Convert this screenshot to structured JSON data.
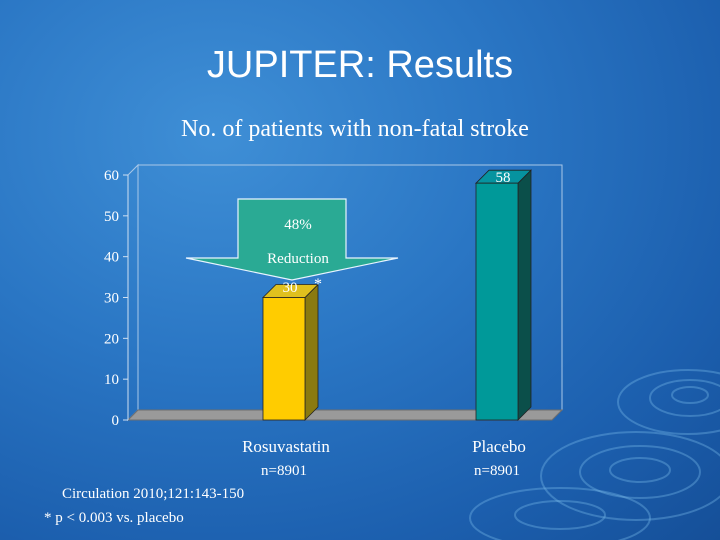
{
  "slide": {
    "title": "JUPITER: Results",
    "subtitle": "No. of patients with non-fatal stroke",
    "citation": "Circulation 2010;121:143-150",
    "footnote": "* p < 0.003 vs. placebo"
  },
  "chart_data": {
    "type": "bar",
    "title": "No. of patients with non-fatal stroke",
    "categories": [
      "Rosuvastatin",
      "Placebo"
    ],
    "category_sublabels": [
      "n=8901",
      "n=8901"
    ],
    "values": [
      30,
      58
    ],
    "value_labels": [
      "30",
      "58"
    ],
    "significance_marker": "*",
    "ylim": [
      0,
      60
    ],
    "yticks": [
      0,
      10,
      20,
      30,
      40,
      50,
      60
    ],
    "grid": false,
    "bar_colors": [
      "#ffcc00",
      "#009999"
    ],
    "bar_side_colors": [
      "#8a7a10",
      "#0b4f4a"
    ],
    "annotation": {
      "line1": "48%",
      "line2": "Reduction",
      "color": "#2aaa94"
    }
  }
}
